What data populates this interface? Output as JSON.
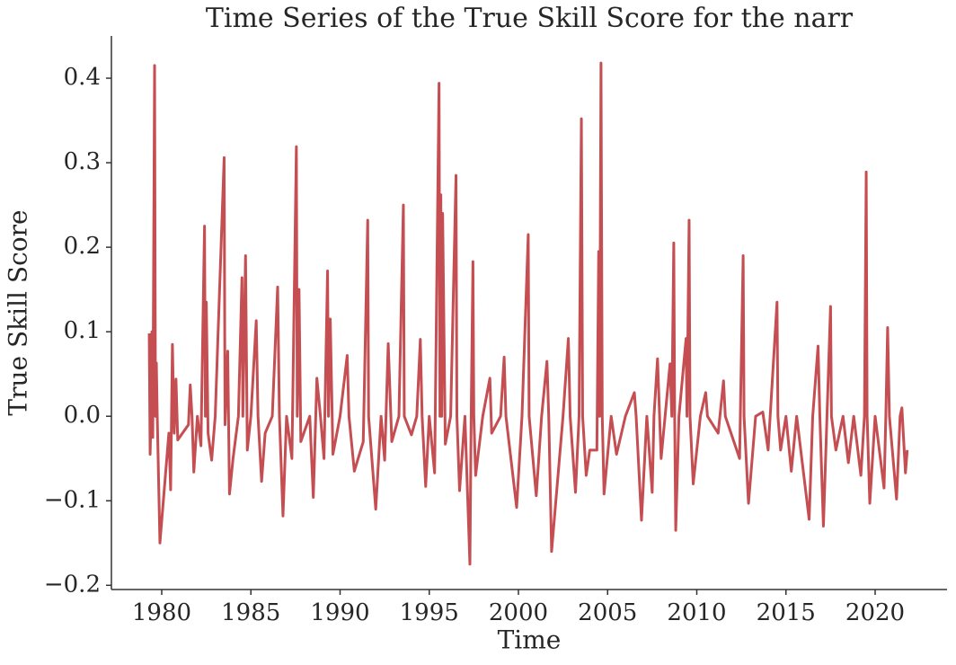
{
  "chart_data": {
    "type": "line",
    "title": "Time Series of the True Skill Score for the narr",
    "x_label": "Time",
    "y_label": "True Skill Score",
    "color": "#c44e52",
    "xlim": [
      1977.18,
      2024.03
    ],
    "xticks": [
      1980,
      1985,
      1990,
      1995,
      2000,
      2005,
      2010,
      2015,
      2020
    ],
    "ylim": [
      -0.205,
      0.45
    ],
    "yticks": [
      {
        "value": -0.2,
        "label": "−0.2"
      },
      {
        "value": -0.1,
        "label": "−0.1"
      },
      {
        "value": 0,
        "label": "0.0"
      },
      0.1,
      0.2,
      0.3,
      0.4
    ],
    "grid": false,
    "x": [
      1979.3,
      1979.35,
      1979.4,
      1979.45,
      1979.5,
      1979.6,
      1979.65,
      1979.7,
      1979.75,
      1979.9,
      1980.4,
      1980.5,
      1980.6,
      1980.7,
      1980.8,
      1980.9,
      1981.5,
      1981.6,
      1981.7,
      1981.8,
      1982.0,
      1982.2,
      1982.4,
      1982.45,
      1982.5,
      1982.6,
      1982.8,
      1983.0,
      1983.5,
      1983.55,
      1983.7,
      1983.8,
      1984.0,
      1984.3,
      1984.5,
      1984.55,
      1984.7,
      1984.8,
      1985.0,
      1985.3,
      1985.4,
      1985.6,
      1985.8,
      1986.2,
      1986.5,
      1986.6,
      1986.8,
      1987.0,
      1987.3,
      1987.55,
      1987.6,
      1987.7,
      1987.8,
      1988.3,
      1988.5,
      1988.7,
      1988.9,
      1989.1,
      1989.3,
      1989.35,
      1989.45,
      1989.6,
      1990.0,
      1990.4,
      1990.5,
      1990.8,
      1991.3,
      1991.55,
      1991.6,
      1992.0,
      1992.3,
      1992.5,
      1992.7,
      1992.9,
      1993.3,
      1993.55,
      1993.6,
      1994.0,
      1994.3,
      1994.5,
      1994.6,
      1994.8,
      1995.0,
      1995.3,
      1995.55,
      1995.6,
      1995.65,
      1995.7,
      1995.75,
      1995.9,
      1996.2,
      1996.5,
      1996.55,
      1996.7,
      1997.0,
      1997.28,
      1997.35,
      1997.45,
      1997.5,
      1997.6,
      1998.0,
      1998.4,
      1998.5,
      1999.0,
      1999.2,
      1999.3,
      1999.9,
      2000.2,
      2000.55,
      2000.6,
      2001.0,
      2001.3,
      2001.6,
      2001.7,
      2001.86,
      2002.5,
      2002.8,
      2002.9,
      2003.2,
      2003.4,
      2003.53,
      2003.6,
      2003.8,
      2004.0,
      2004.4,
      2004.5,
      2004.55,
      2004.63,
      2004.7,
      2004.8,
      2005.2,
      2005.5,
      2006.0,
      2006.5,
      2006.6,
      2006.9,
      2007.2,
      2007.5,
      2007.6,
      2007.8,
      2008.0,
      2008.5,
      2008.6,
      2008.71,
      2008.76,
      2008.82,
      2009.0,
      2009.4,
      2009.45,
      2009.57,
      2009.62,
      2009.8,
      2010.2,
      2010.5,
      2010.6,
      2011.2,
      2011.5,
      2011.6,
      2012.4,
      2012.6,
      2012.65,
      2012.9,
      2013.3,
      2013.7,
      2014.0,
      2014.5,
      2014.55,
      2014.7,
      2015.0,
      2015.3,
      2015.6,
      2016.3,
      2016.5,
      2016.8,
      2016.9,
      2017.1,
      2017.3,
      2017.5,
      2017.55,
      2017.8,
      2018.2,
      2018.5,
      2018.8,
      2019.2,
      2019.4,
      2019.5,
      2019.55,
      2019.7,
      2020.0,
      2020.5,
      2020.6,
      2020.7,
      2020.8,
      2021.2,
      2021.4,
      2021.5,
      2021.7,
      2021.8
    ],
    "values": [
      0.098,
      -0.045,
      0.0,
      0.1,
      -0.025,
      0.415,
      0.0,
      0.063,
      0.0,
      -0.15,
      -0.02,
      -0.087,
      0.085,
      -0.02,
      0.044,
      -0.028,
      -0.01,
      0.037,
      0.0,
      -0.066,
      0.0,
      -0.035,
      0.225,
      0.0,
      0.135,
      -0.02,
      -0.052,
      0.0,
      0.306,
      -0.01,
      0.077,
      -0.092,
      -0.05,
      0.0,
      0.164,
      0.0,
      0.19,
      -0.04,
      0.0,
      0.113,
      0.0,
      -0.077,
      -0.02,
      0.0,
      0.153,
      0.0,
      -0.118,
      0.0,
      -0.05,
      0.319,
      0.0,
      0.15,
      -0.03,
      0.0,
      -0.096,
      0.045,
      0.0,
      -0.05,
      0.172,
      0.0,
      0.115,
      -0.045,
      0.0,
      0.072,
      0.0,
      -0.065,
      -0.03,
      0.232,
      0.0,
      -0.11,
      0.0,
      -0.052,
      0.086,
      -0.03,
      0.0,
      0.25,
      0.0,
      -0.022,
      0.0,
      0.091,
      0.0,
      -0.083,
      0.0,
      -0.067,
      0.394,
      0.0,
      0.262,
      0.0,
      0.24,
      -0.033,
      0.0,
      0.285,
      0.0,
      -0.088,
      0.0,
      -0.175,
      0.0,
      0.183,
      0.0,
      -0.07,
      0.0,
      0.045,
      -0.02,
      0.0,
      0.07,
      0.0,
      -0.108,
      0.0,
      0.215,
      0.0,
      -0.094,
      0.0,
      0.065,
      0.0,
      -0.16,
      0.0,
      0.092,
      0.0,
      -0.09,
      0.0,
      0.352,
      0.0,
      -0.07,
      -0.04,
      -0.04,
      0.195,
      0.0,
      0.418,
      0.0,
      -0.092,
      0.0,
      -0.045,
      0.0,
      0.028,
      0.0,
      -0.123,
      0.0,
      -0.09,
      0.0,
      0.068,
      -0.05,
      0.062,
      0.0,
      0.205,
      0.0,
      -0.135,
      0.0,
      0.092,
      0.0,
      0.232,
      0.0,
      -0.08,
      0.0,
      0.028,
      0.0,
      -0.02,
      0.042,
      0.0,
      -0.05,
      0.19,
      0.0,
      -0.103,
      0.0,
      0.005,
      -0.04,
      0.135,
      0.0,
      -0.04,
      0.0,
      -0.065,
      0.0,
      -0.122,
      0.0,
      0.083,
      0.0,
      -0.13,
      0.0,
      0.13,
      0.0,
      -0.04,
      0.0,
      -0.055,
      0.0,
      -0.07,
      0.0,
      0.289,
      0.0,
      -0.103,
      0.0,
      -0.085,
      0.0,
      0.105,
      0.0,
      -0.098,
      0.0,
      0.01,
      -0.067,
      -0.04
    ]
  }
}
